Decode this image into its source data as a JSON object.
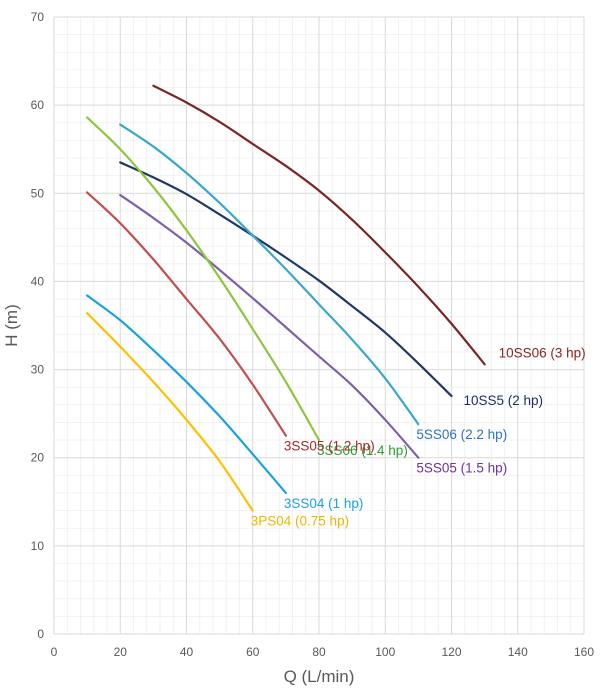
{
  "chart_data": {
    "type": "line",
    "title": "",
    "xlabel": "Q (L/min)",
    "ylabel": "H (m)",
    "xlim": [
      0,
      160
    ],
    "ylim": [
      0,
      70
    ],
    "x_ticks": [
      0,
      20,
      40,
      60,
      80,
      100,
      120,
      140,
      160
    ],
    "y_ticks": [
      0,
      10,
      20,
      30,
      40,
      50,
      60,
      70
    ],
    "grid": true,
    "legend": "none",
    "series": [
      {
        "name": "10SS06 (3 hp)",
        "color": "#7b2626",
        "label_color": "#8b2323",
        "points": [
          [
            30,
            62.2
          ],
          [
            40,
            60.3
          ],
          [
            50,
            58.1
          ],
          [
            60,
            55.6
          ],
          [
            70,
            53.1
          ],
          [
            80,
            50.3
          ],
          [
            90,
            47.0
          ],
          [
            100,
            43.3
          ],
          [
            110,
            39.4
          ],
          [
            120,
            35.2
          ],
          [
            130,
            30.6
          ]
        ]
      },
      {
        "name": "10SS5 (2 hp)",
        "color": "#1f3864",
        "label_color": "#1f2d6b",
        "points": [
          [
            20,
            53.5
          ],
          [
            30,
            51.8
          ],
          [
            40,
            49.9
          ],
          [
            50,
            47.6
          ],
          [
            60,
            45.2
          ],
          [
            70,
            42.7
          ],
          [
            80,
            40.1
          ],
          [
            90,
            37.2
          ],
          [
            100,
            34.2
          ],
          [
            110,
            30.7
          ],
          [
            120,
            27.0
          ]
        ]
      },
      {
        "name": "5SS06 (2.2 hp)",
        "color": "#3aa8c8",
        "label_color": "#2e75b6",
        "points": [
          [
            20,
            57.8
          ],
          [
            30,
            55.3
          ],
          [
            40,
            52.3
          ],
          [
            50,
            48.9
          ],
          [
            60,
            45.2
          ],
          [
            70,
            41.4
          ],
          [
            80,
            37.4
          ],
          [
            90,
            33.4
          ],
          [
            100,
            29.0
          ],
          [
            110,
            23.8
          ]
        ]
      },
      {
        "name": "5SS05 (1.5 hp)",
        "color": "#7f60a8",
        "label_color": "#7030a0",
        "points": [
          [
            20,
            49.8
          ],
          [
            30,
            47.2
          ],
          [
            40,
            44.4
          ],
          [
            50,
            41.3
          ],
          [
            60,
            38.1
          ],
          [
            70,
            34.8
          ],
          [
            80,
            31.5
          ],
          [
            90,
            28.2
          ],
          [
            100,
            24.3
          ],
          [
            110,
            20.0
          ]
        ]
      },
      {
        "name": "3SS06 (1.4 hp)",
        "color": "#8dc63f",
        "label_color": "#2ca02c",
        "points": [
          [
            10,
            58.6
          ],
          [
            20,
            55.0
          ],
          [
            30,
            50.7
          ],
          [
            40,
            45.8
          ],
          [
            50,
            40.4
          ],
          [
            60,
            34.6
          ],
          [
            70,
            28.6
          ],
          [
            80,
            22.0
          ]
        ]
      },
      {
        "name": "3SS05 (1.2 hp)",
        "color": "#c0504d",
        "label_color": "#a52a2a",
        "points": [
          [
            10,
            50.1
          ],
          [
            20,
            46.6
          ],
          [
            30,
            42.5
          ],
          [
            40,
            38.0
          ],
          [
            50,
            33.5
          ],
          [
            60,
            28.3
          ],
          [
            70,
            22.5
          ]
        ]
      },
      {
        "name": "3SS04 (1 hp)",
        "color": "#1ba1e2",
        "label_color": "#1ba1e2",
        "points": [
          [
            10,
            38.4
          ],
          [
            20,
            35.6
          ],
          [
            30,
            32.2
          ],
          [
            40,
            28.6
          ],
          [
            50,
            24.7
          ],
          [
            60,
            20.4
          ],
          [
            70,
            16.0
          ]
        ]
      },
      {
        "name": "3PS04 (0.75 hp)",
        "color": "#ffc000",
        "label_color": "#f0b400",
        "points": [
          [
            10,
            36.4
          ],
          [
            20,
            32.6
          ],
          [
            30,
            28.6
          ],
          [
            40,
            24.3
          ],
          [
            50,
            19.6
          ],
          [
            60,
            14.0
          ]
        ]
      }
    ]
  }
}
